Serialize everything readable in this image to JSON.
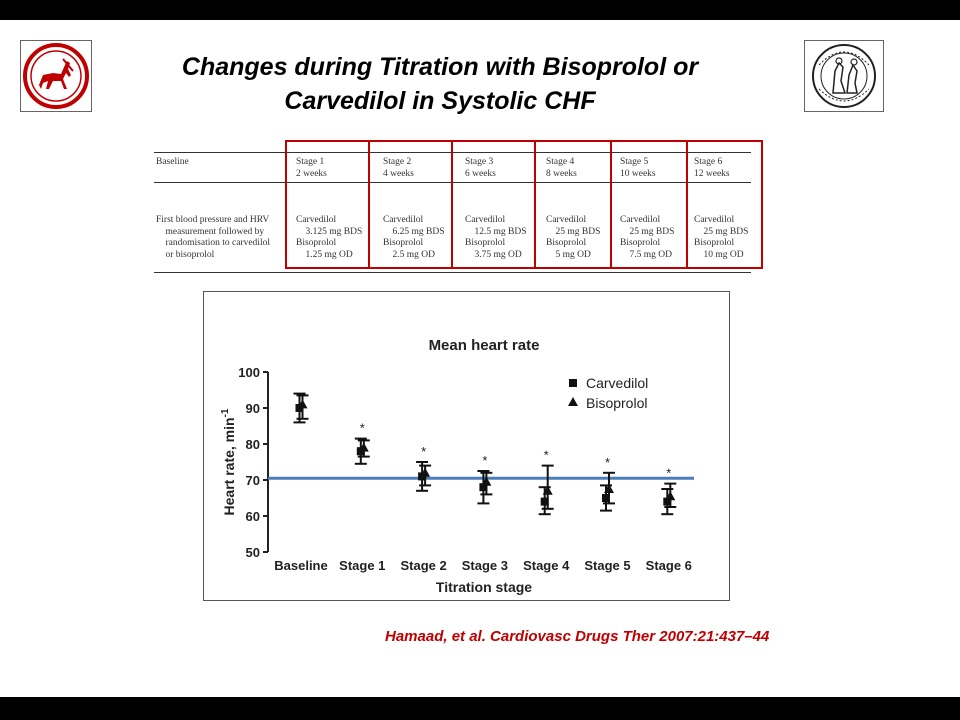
{
  "slide": {
    "title_line1": "Changes during Titration with Bisoprolol or",
    "title_line2": "Carvedilol in Systolic CHF",
    "citation": "Hamaad, et al. Cardiovasc Drugs Ther  2007:21:437–44"
  },
  "regimen_table": {
    "headers": [
      [
        "Baseline",
        ""
      ],
      [
        "Stage 1",
        "2 weeks"
      ],
      [
        "Stage 2",
        "4 weeks"
      ],
      [
        "Stage 3",
        "6 weeks"
      ],
      [
        "Stage 4",
        "8 weeks"
      ],
      [
        "Stage 5",
        "10 weeks"
      ],
      [
        "Stage 6",
        "12 weeks"
      ]
    ],
    "body": [
      [
        "First blood pressure and HRV",
        "  measurement followed by",
        "  randomisation to carvedilol",
        "  or bisoprolol"
      ],
      [
        "Carvedilol",
        "  3.125 mg BDS",
        "Bisoprolol",
        "  1.25 mg OD"
      ],
      [
        "Carvedilol",
        "  6.25 mg BDS",
        "Bisoprolol",
        "  2.5 mg OD"
      ],
      [
        "Carvedilol",
        "  12.5 mg BDS",
        "Bisoprolol",
        "  3.75 mg OD"
      ],
      [
        "Carvedilol",
        "  25 mg BDS",
        "Bisoprolol",
        "  5 mg OD"
      ],
      [
        "Carvedilol",
        "  25 mg BDS",
        "Bisoprolol",
        "  7.5 mg OD"
      ],
      [
        "Carvedilol",
        "  25 mg BDS",
        "Bisoprolol",
        "  10 mg OD"
      ]
    ]
  },
  "chart_data": {
    "type": "scatter",
    "title": "Mean heart rate",
    "xlabel": "Titration stage",
    "ylabel": "Heart rate, min",
    "ylabel_superscript": "-1",
    "ylim": [
      50,
      100
    ],
    "yticks": [
      50,
      60,
      70,
      80,
      90,
      100
    ],
    "categories": [
      "Baseline",
      "Stage 1",
      "Stage 2",
      "Stage 3",
      "Stage 4",
      "Stage 5",
      "Stage 6"
    ],
    "series": [
      {
        "name": "Carvedilol",
        "marker": "square",
        "values": [
          90,
          78,
          71,
          68,
          64,
          65,
          64
        ],
        "error_low": [
          86,
          74.5,
          67,
          63.5,
          60.5,
          61.5,
          60.5
        ],
        "error_high": [
          94,
          81.5,
          75,
          72.5,
          68,
          68.5,
          67.5
        ]
      },
      {
        "name": "Bisoprolol",
        "marker": "triangle",
        "values": [
          91,
          79,
          72,
          69.5,
          67,
          67.5,
          65.5
        ],
        "error_low": [
          87,
          76.5,
          68.5,
          66,
          62,
          63.5,
          62.5
        ],
        "error_high": [
          93.5,
          81,
          74,
          72,
          74,
          72,
          69
        ]
      }
    ],
    "significance_marks": [
      "",
      "*",
      "*",
      "*",
      "*",
      "*",
      "*"
    ],
    "reference_line": {
      "y": 70.5,
      "color": "#4a7ebb"
    },
    "legend_position": "top-right",
    "grid": false
  }
}
